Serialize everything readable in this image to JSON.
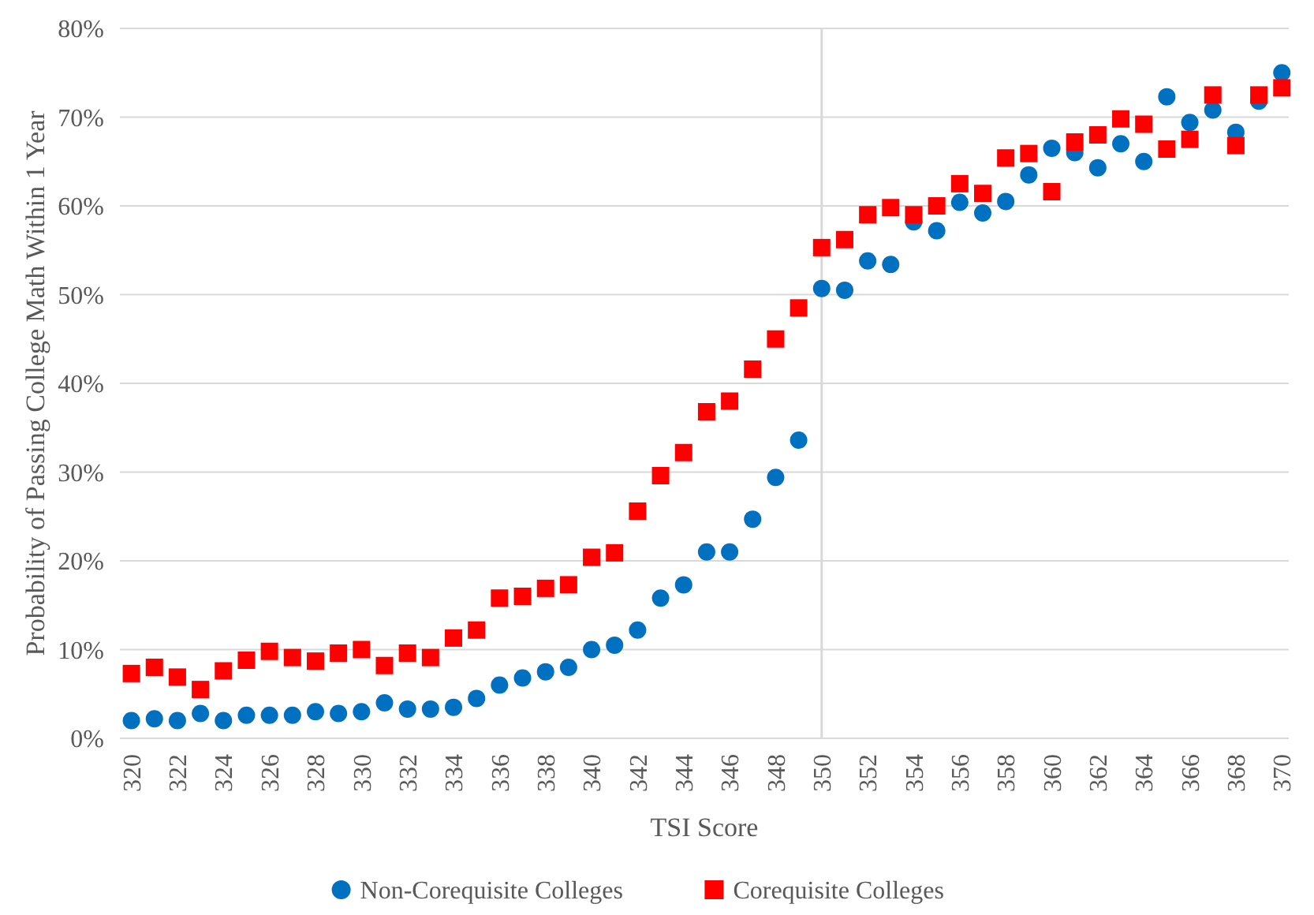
{
  "chart_data": {
    "type": "scatter",
    "xlabel": "TSI Score",
    "ylabel": "Probability of Passing College Math Within 1 Year",
    "x": [
      320,
      321,
      322,
      323,
      324,
      325,
      326,
      327,
      328,
      329,
      330,
      331,
      332,
      333,
      334,
      335,
      336,
      337,
      338,
      339,
      340,
      341,
      342,
      343,
      344,
      345,
      346,
      347,
      348,
      349,
      350,
      351,
      352,
      353,
      354,
      355,
      356,
      357,
      358,
      359,
      360,
      361,
      362,
      363,
      364,
      365,
      366,
      367,
      368,
      369,
      370
    ],
    "series": [
      {
        "name": "Non-Corequisite Colleges",
        "color": "#0070c0",
        "marker": "circle",
        "values": [
          2,
          2.2,
          2,
          2.8,
          2,
          2.6,
          2.6,
          2.6,
          3,
          2.8,
          3,
          4,
          3.3,
          3.3,
          3.5,
          4.5,
          6,
          6.8,
          7.5,
          8,
          10,
          10.5,
          12.2,
          15.8,
          17.3,
          21,
          21,
          24.7,
          29.4,
          33.6,
          50.7,
          50.5,
          53.8,
          53.4,
          58.2,
          57.2,
          60.4,
          59.2,
          60.5,
          63.5,
          66.5,
          66,
          64.3,
          67,
          65,
          72.3,
          69.4,
          70.8,
          68.3,
          71.8,
          75
        ]
      },
      {
        "name": "Corequisite Colleges",
        "color": "#ff0000",
        "marker": "square",
        "values": [
          7.3,
          8,
          6.9,
          5.5,
          7.6,
          8.8,
          9.8,
          9.1,
          8.7,
          9.6,
          10,
          8.2,
          9.6,
          9.1,
          11.3,
          12.2,
          15.8,
          16,
          16.9,
          17.3,
          20.4,
          20.9,
          25.6,
          29.6,
          32.2,
          36.8,
          38,
          41.6,
          45,
          48.5,
          55.3,
          56.2,
          59,
          59.8,
          59,
          60,
          62.5,
          61.4,
          65.4,
          65.9,
          61.6,
          67.2,
          68,
          69.8,
          69.2,
          66.4,
          67.5,
          72.5,
          66.8,
          72.5,
          73.3
        ]
      }
    ],
    "xlim": [
      319.5,
      370.3
    ],
    "xticks": [
      320,
      322,
      324,
      326,
      328,
      330,
      332,
      334,
      336,
      338,
      340,
      342,
      344,
      346,
      348,
      350,
      352,
      354,
      356,
      358,
      360,
      362,
      364,
      366,
      368,
      370
    ],
    "ylim": [
      0,
      80
    ],
    "yticks": [
      {
        "value": 0,
        "label": "0%"
      },
      {
        "value": 10,
        "label": "10%"
      },
      {
        "value": 20,
        "label": "20%"
      },
      {
        "value": 30,
        "label": "30%"
      },
      {
        "value": 40,
        "label": "40%"
      },
      {
        "value": 50,
        "label": "50%"
      },
      {
        "value": 60,
        "label": "60%"
      },
      {
        "value": 70,
        "label": "70%"
      },
      {
        "value": 80,
        "label": "80%"
      }
    ],
    "ref_lines": [
      {
        "axis": "x",
        "value": 350,
        "color": "#d9d9d9"
      }
    ],
    "grid": "y",
    "legend": "bottom"
  }
}
